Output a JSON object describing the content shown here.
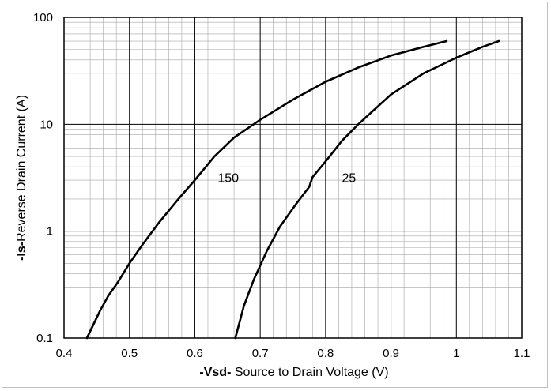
{
  "chart_data": {
    "type": "line",
    "title": "",
    "xlabel": {
      "bold": "-Vsd-",
      "rest": " Source to Drain Voltage (V)"
    },
    "ylabel": {
      "bold": "-Is-",
      "rest": "Reverse  Drain Current  (A)"
    },
    "xlim": [
      0.4,
      1.1
    ],
    "ylim": [
      0.1,
      100
    ],
    "yscale": "log",
    "grid": true,
    "x_ticks": [
      "0.4",
      "0.5",
      "0.6",
      "0.7",
      "0.8",
      "0.9",
      "1",
      "1.1"
    ],
    "y_ticks": [
      "0.1",
      "1",
      "10",
      "100"
    ],
    "series": [
      {
        "name": "150",
        "label": "150",
        "x": [
          0.435,
          0.455,
          0.468,
          0.482,
          0.5,
          0.52,
          0.545,
          0.575,
          0.6,
          0.63,
          0.66,
          0.7,
          0.75,
          0.8,
          0.85,
          0.9,
          0.95,
          0.985
        ],
        "y": [
          0.1,
          0.18,
          0.25,
          0.33,
          0.5,
          0.75,
          1.2,
          2.0,
          3.0,
          5.0,
          7.5,
          11,
          17,
          25,
          34,
          44,
          53,
          60
        ]
      },
      {
        "name": "25",
        "label": "25",
        "x": [
          0.662,
          0.675,
          0.69,
          0.71,
          0.73,
          0.755,
          0.775,
          0.78,
          0.8,
          0.825,
          0.85,
          0.9,
          0.95,
          1.0,
          1.04,
          1.065
        ],
        "y": [
          0.1,
          0.2,
          0.35,
          0.65,
          1.1,
          1.8,
          2.6,
          3.2,
          4.5,
          7.0,
          10,
          19,
          30,
          42,
          53,
          60
        ]
      }
    ],
    "annotations": [
      {
        "text": "150",
        "x": 0.635,
        "y": 3.2
      },
      {
        "text": "25",
        "x": 0.825,
        "y": 3.2
      }
    ]
  }
}
